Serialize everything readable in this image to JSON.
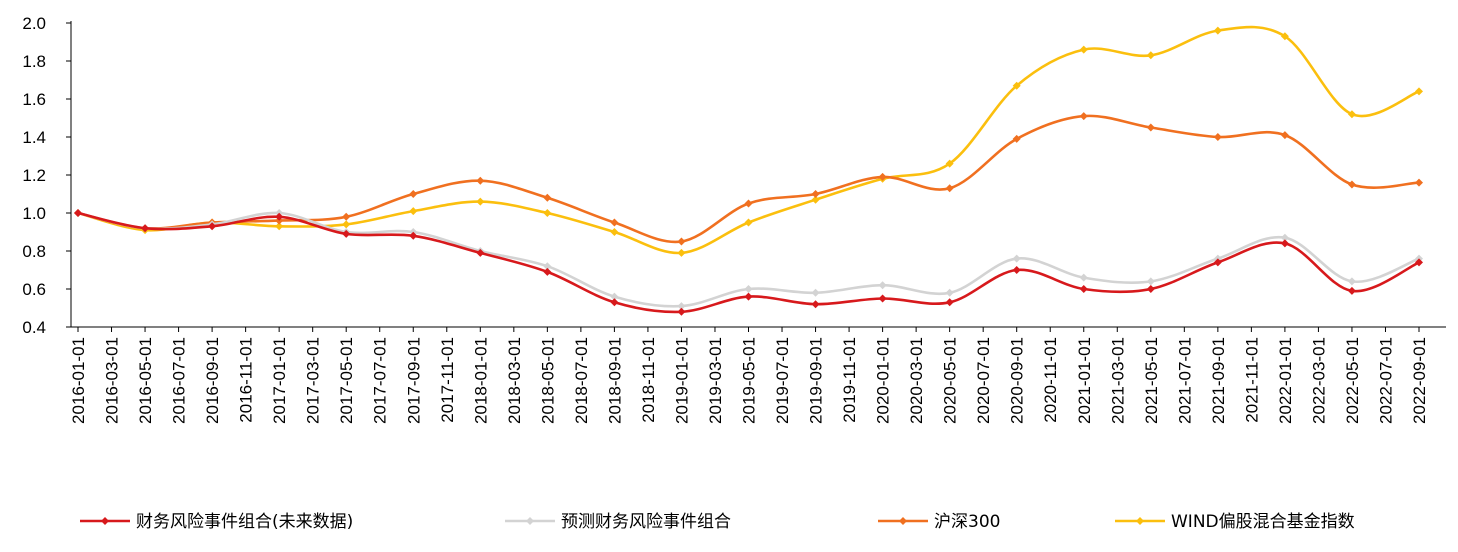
{
  "chart_data": {
    "type": "line",
    "title": "",
    "xlabel": "",
    "ylabel": "",
    "ylim": [
      0.4,
      2.0
    ],
    "yticks": [
      "0.4",
      "0.6",
      "0.8",
      "1.0",
      "1.2",
      "1.4",
      "1.6",
      "1.8",
      "2.0"
    ],
    "x_tick_labels": [
      "2016-01-01",
      "2016-03-01",
      "2016-05-01",
      "2016-07-01",
      "2016-09-01",
      "2016-11-01",
      "2017-01-01",
      "2017-03-01",
      "2017-05-01",
      "2017-07-01",
      "2017-09-01",
      "2017-11-01",
      "2018-01-01",
      "2018-03-01",
      "2018-05-01",
      "2018-07-01",
      "2018-09-01",
      "2018-11-01",
      "2019-01-01",
      "2019-03-01",
      "2019-05-01",
      "2019-07-01",
      "2019-09-01",
      "2019-11-01",
      "2020-01-01",
      "2020-03-01",
      "2020-05-01",
      "2020-07-01",
      "2020-09-01",
      "2020-11-01",
      "2021-01-01",
      "2021-03-01",
      "2021-05-01",
      "2021-07-01",
      "2021-09-01",
      "2021-11-01",
      "2022-01-01",
      "2022-03-01",
      "2022-05-01",
      "2022-07-01",
      "2022-09-01"
    ],
    "x": [
      "2016-01-01",
      "2016-05-01",
      "2016-09-01",
      "2017-01-01",
      "2017-05-01",
      "2017-09-01",
      "2018-01-01",
      "2018-05-01",
      "2018-09-01",
      "2019-01-01",
      "2019-05-01",
      "2019-09-01",
      "2020-01-01",
      "2020-05-01",
      "2020-09-01",
      "2021-01-01",
      "2021-05-01",
      "2021-09-01",
      "2022-01-01",
      "2022-05-01",
      "2022-09-01"
    ],
    "grid": false,
    "legend_position": "bottom",
    "series": [
      {
        "name": "财务风险事件组合(未来数据)",
        "color": "#d7191c",
        "values": [
          1.0,
          0.92,
          0.93,
          0.98,
          0.89,
          0.88,
          0.79,
          0.69,
          0.53,
          0.48,
          0.56,
          0.52,
          0.55,
          0.53,
          0.7,
          0.6,
          0.6,
          0.74,
          0.84,
          0.59,
          0.74
        ]
      },
      {
        "name": "预测财务风险事件组合",
        "color": "#d3d3d3",
        "values": [
          1.0,
          0.92,
          0.94,
          1.0,
          0.9,
          0.9,
          0.8,
          0.72,
          0.56,
          0.51,
          0.6,
          0.58,
          0.62,
          0.58,
          0.76,
          0.66,
          0.64,
          0.76,
          0.87,
          0.64,
          0.76
        ]
      },
      {
        "name": "沪深300",
        "color": "#f07020",
        "values": [
          1.0,
          0.92,
          0.95,
          0.96,
          0.98,
          1.1,
          1.17,
          1.08,
          0.95,
          0.85,
          1.05,
          1.1,
          1.19,
          1.13,
          1.39,
          1.51,
          1.45,
          1.4,
          1.41,
          1.15,
          1.16
        ]
      },
      {
        "name": "WIND偏股混合基金指数",
        "color": "#fbbf0e",
        "values": [
          1.0,
          0.91,
          0.95,
          0.93,
          0.94,
          1.01,
          1.06,
          1.0,
          0.9,
          0.79,
          0.95,
          1.07,
          1.18,
          1.26,
          1.67,
          1.86,
          1.83,
          1.96,
          1.93,
          1.52,
          1.64
        ]
      }
    ]
  }
}
